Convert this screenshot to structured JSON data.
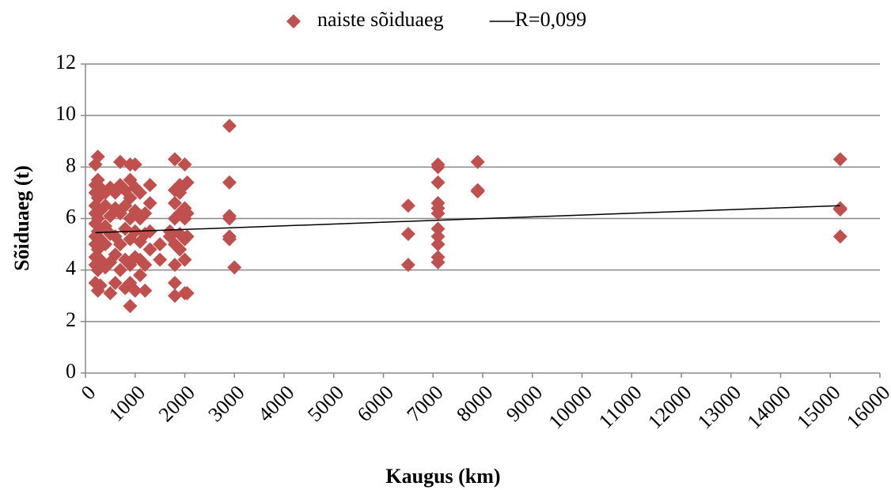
{
  "chart_data": {
    "type": "scatter",
    "xlabel": "Kaugus (km)",
    "ylabel": "Sõiduaeg (t)",
    "xlim": [
      0,
      16000
    ],
    "xticks": [
      0,
      1000,
      2000,
      3000,
      4000,
      5000,
      6000,
      7000,
      8000,
      9000,
      10000,
      11000,
      12000,
      13000,
      14000,
      15000,
      16000
    ],
    "ylim": [
      0,
      12
    ],
    "yticks": [
      0,
      2,
      4,
      6,
      8,
      10,
      12
    ],
    "grid": true,
    "legend": "top",
    "series": [
      {
        "name": "naiste sõiduaeg",
        "color": "#c0504d",
        "marker": "diamond",
        "x": [
          200,
          200,
          200,
          200,
          200,
          200,
          200,
          200,
          200,
          200,
          200,
          250,
          250,
          250,
          250,
          250,
          250,
          250,
          250,
          300,
          300,
          300,
          300,
          300,
          400,
          400,
          400,
          400,
          400,
          500,
          500,
          500,
          500,
          500,
          600,
          600,
          600,
          600,
          600,
          700,
          700,
          700,
          700,
          700,
          800,
          800,
          800,
          800,
          800,
          900,
          900,
          900,
          900,
          900,
          900,
          900,
          900,
          1000,
          1000,
          1000,
          1000,
          1000,
          1000,
          1100,
          1100,
          1100,
          1100,
          1100,
          1200,
          1200,
          1200,
          1200,
          1300,
          1300,
          1300,
          1300,
          1500,
          1500,
          1700,
          1700,
          1800,
          1800,
          1800,
          1800,
          1800,
          1800,
          1800,
          1800,
          1900,
          1900,
          1900,
          1900,
          1900,
          2000,
          2000,
          2000,
          2000,
          2000,
          2000,
          2000,
          2050,
          2050,
          2050,
          2050,
          2900,
          2900,
          2900,
          2900,
          2900,
          2900,
          3000,
          6500,
          6500,
          6500,
          7100,
          7100,
          7100,
          7100,
          7100,
          7100,
          7100,
          7100,
          7100,
          7100,
          7100,
          7900,
          7900,
          7900,
          15200,
          15200,
          15200,
          15200
        ],
        "values": [
          3.5,
          4.2,
          4.5,
          5.0,
          5.3,
          5.8,
          6.2,
          6.5,
          7.0,
          7.3,
          8.1,
          3.2,
          4.0,
          4.8,
          5.5,
          6.0,
          6.8,
          7.5,
          8.4,
          3.4,
          4.4,
          5.2,
          6.3,
          7.2,
          4.1,
          5.0,
          5.7,
          6.5,
          7.0,
          3.1,
          4.3,
          5.4,
          6.1,
          7.2,
          3.5,
          4.6,
          5.3,
          6.4,
          7.0,
          4.0,
          5.0,
          6.2,
          7.3,
          8.2,
          3.3,
          4.4,
          5.6,
          6.5,
          7.1,
          2.6,
          3.5,
          4.2,
          5.2,
          6.0,
          6.8,
          7.5,
          8.1,
          3.2,
          4.5,
          5.5,
          6.3,
          7.2,
          8.1,
          3.8,
          4.4,
          5.1,
          6.0,
          7.0,
          3.2,
          4.2,
          5.4,
          6.2,
          4.8,
          5.5,
          6.6,
          7.3,
          4.4,
          5.0,
          5.3,
          5.5,
          3.0,
          3.5,
          4.2,
          5.0,
          6.0,
          6.6,
          7.1,
          8.3,
          4.8,
          5.4,
          6.2,
          7.0,
          7.3,
          3.1,
          4.4,
          5.2,
          6.0,
          6.4,
          7.3,
          8.1,
          3.1,
          5.3,
          6.2,
          7.4,
          5.2,
          5.3,
          6.0,
          6.1,
          7.4,
          9.6,
          4.1,
          4.2,
          5.4,
          6.5,
          4.3,
          4.5,
          5.0,
          5.3,
          5.6,
          6.2,
          6.4,
          6.6,
          7.4,
          8.0,
          8.1,
          7.1,
          7.05,
          8.2,
          5.3,
          6.35,
          6.4,
          8.3
        ]
      },
      {
        "name": "R=0,099",
        "color": "#000000",
        "marker": "line",
        "x": [
          200,
          15200
        ],
        "values": [
          5.45,
          6.5
        ]
      }
    ]
  }
}
